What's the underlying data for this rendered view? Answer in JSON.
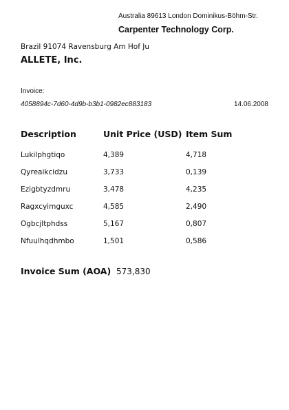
{
  "sender": {
    "address": "Australia 89613 London Dominikus-Böhm-Str.",
    "company": "Carpenter Technology Corp."
  },
  "recipient": {
    "address": "Brazil 91074 Ravensburg Am Hof Ju",
    "company": "ALLETE, Inc."
  },
  "invoice": {
    "label": "Invoice:",
    "id": "4058894c-7d60-4d9b-b3b1-0982ec883183",
    "date": "14.06.2008"
  },
  "table": {
    "headers": {
      "description": "Description",
      "unit_price": "Unit Price (USD)",
      "item_sum": "Item Sum"
    },
    "rows": [
      {
        "description": "Lukilphgtiqo",
        "unit_price": "4,389",
        "item_sum": "4,718"
      },
      {
        "description": "Qyreaikcidzu",
        "unit_price": "3,733",
        "item_sum": "0,139"
      },
      {
        "description": "Ezigbtyzdmru",
        "unit_price": "3,478",
        "item_sum": "4,235"
      },
      {
        "description": "Ragxcyimguxc",
        "unit_price": "4,585",
        "item_sum": "2,490"
      },
      {
        "description": "Ogbcjltphdss",
        "unit_price": "5,167",
        "item_sum": "0,807"
      },
      {
        "description": "Nfuulhqdhmbo",
        "unit_price": "1,501",
        "item_sum": "0,586"
      }
    ]
  },
  "total": {
    "label": "Invoice Sum (AOA)",
    "value": "573,830"
  }
}
